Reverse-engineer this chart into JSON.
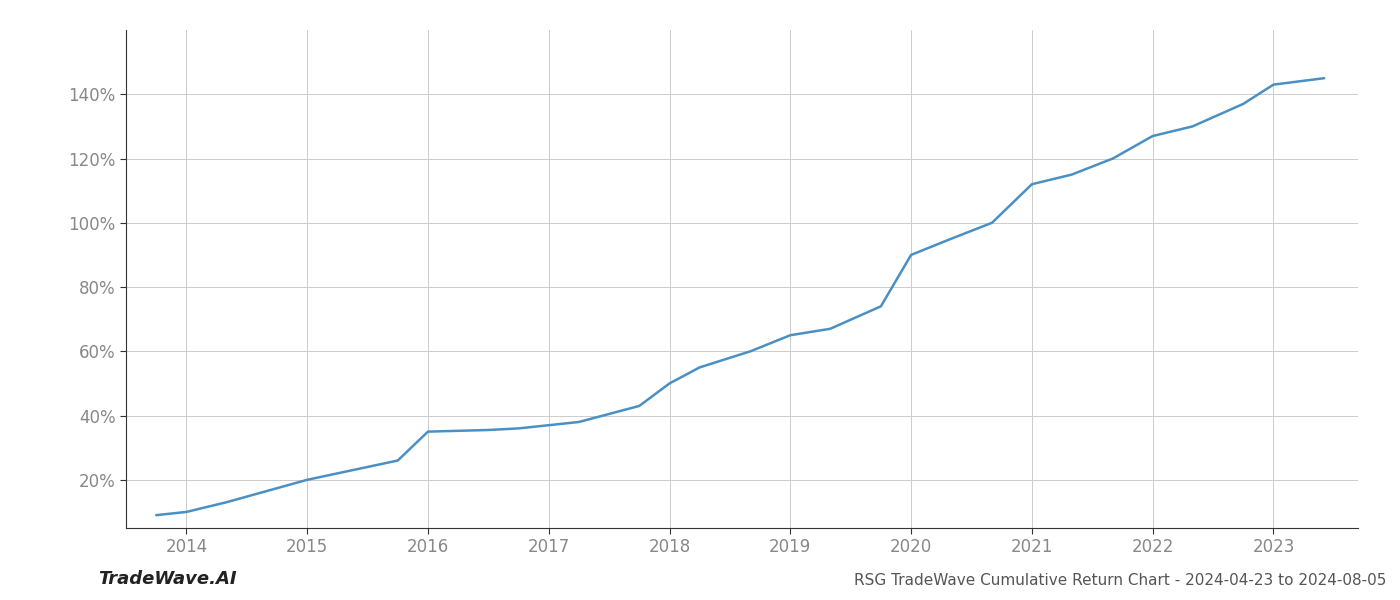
{
  "x_values": [
    2013.75,
    2014.0,
    2014.33,
    2015.0,
    2015.75,
    2016.0,
    2016.5,
    2016.75,
    2017.0,
    2017.25,
    2017.75,
    2018.0,
    2018.25,
    2018.67,
    2019.0,
    2019.33,
    2019.75,
    2020.0,
    2020.33,
    2020.67,
    2021.0,
    2021.33,
    2021.67,
    2022.0,
    2022.33,
    2022.75,
    2023.0,
    2023.42
  ],
  "y_values": [
    9,
    10,
    13,
    20,
    26,
    35,
    35.5,
    36,
    37,
    38,
    43,
    50,
    55,
    60,
    65,
    67,
    74,
    90,
    95,
    100,
    112,
    115,
    120,
    127,
    130,
    137,
    143,
    145
  ],
  "line_color": "#4a90c4",
  "line_width": 1.8,
  "title": "RSG TradeWave Cumulative Return Chart - 2024-04-23 to 2024-08-05",
  "watermark": "TradeWave.AI",
  "xlim": [
    2013.5,
    2023.7
  ],
  "ylim": [
    5,
    160
  ],
  "yticks": [
    20,
    40,
    60,
    80,
    100,
    120,
    140
  ],
  "xticks": [
    2014,
    2015,
    2016,
    2017,
    2018,
    2019,
    2020,
    2021,
    2022,
    2023
  ],
  "background_color": "#ffffff",
  "grid_color": "#cccccc",
  "tick_color": "#888888",
  "title_fontsize": 11,
  "watermark_fontsize": 13,
  "spine_color": "#333333"
}
